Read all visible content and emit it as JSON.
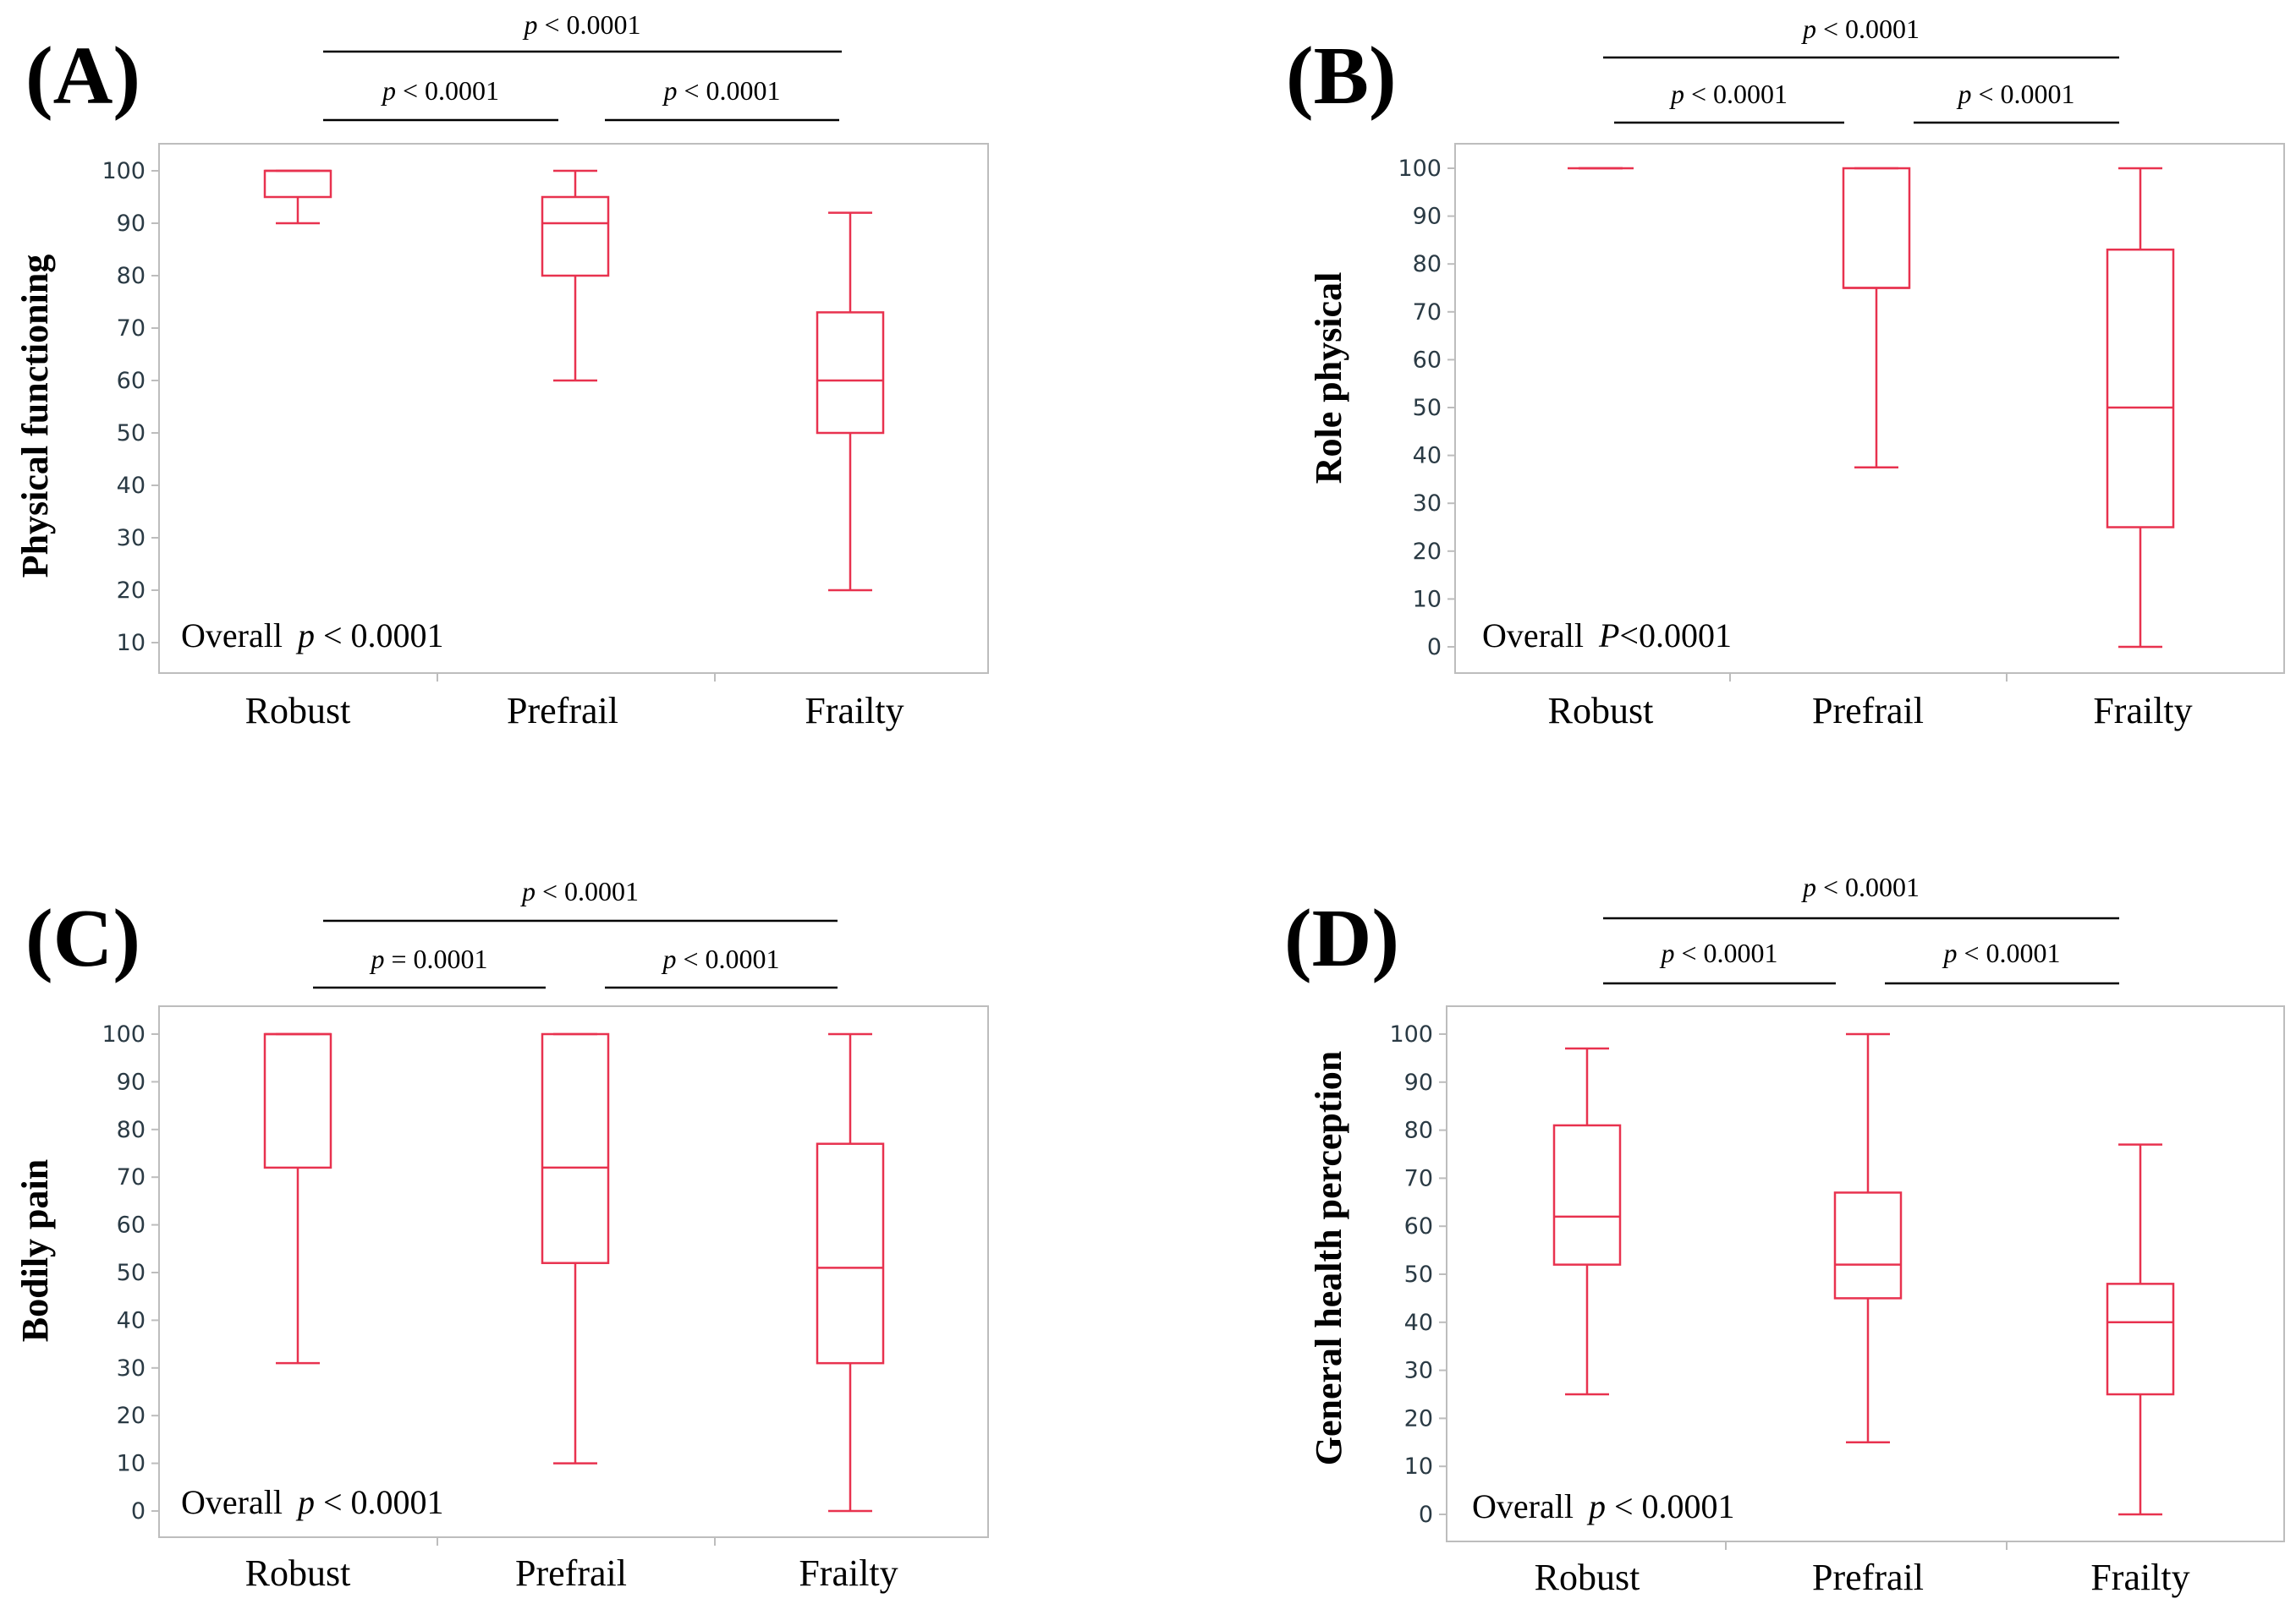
{
  "figure": {
    "categories": [
      "Robust",
      "Prefrail",
      "Frailty"
    ],
    "box_color": "#e8324f",
    "axis_color": "#bdbdbd",
    "tick_label_color": "#2a3a44",
    "line_color": "#000000"
  },
  "chart_data": [
    {
      "type": "boxplot",
      "panel": "(A)",
      "ylabel": "Physical functioning",
      "categories": [
        "Robust",
        "Prefrail",
        "Frailty"
      ],
      "ylim": [
        7,
        105
      ],
      "yticks": [
        10,
        20,
        30,
        40,
        50,
        60,
        70,
        80,
        90,
        100
      ],
      "boxes": [
        {
          "category": "Robust",
          "min": 90,
          "q1": 95,
          "median": 100,
          "q3": 100,
          "max": 100
        },
        {
          "category": "Prefrail",
          "min": 60,
          "q1": 80,
          "median": 90,
          "q3": 95,
          "max": 100
        },
        {
          "category": "Frailty",
          "min": 20,
          "q1": 50,
          "median": 60,
          "q3": 73,
          "max": 92
        }
      ],
      "overall": {
        "prefix": "Overall",
        "p_symbol": "p",
        "rest": " < 0.0001"
      },
      "comparisons": [
        {
          "pair": "Robust-Frailty",
          "p_symbol": "p",
          "text": " < 0.0001"
        },
        {
          "pair": "Robust-Prefrail",
          "p_symbol": "p",
          "text": " < 0.0001"
        },
        {
          "pair": "Prefrail-Frailty",
          "p_symbol": "p",
          "text": " < 0.0001"
        }
      ]
    },
    {
      "type": "boxplot",
      "panel": "(B)",
      "ylabel": "Role physical",
      "categories": [
        "Robust",
        "Prefrail",
        "Frailty"
      ],
      "ylim": [
        -5,
        105
      ],
      "yticks": [
        0,
        10,
        20,
        30,
        40,
        50,
        60,
        70,
        80,
        90,
        100
      ],
      "boxes": [
        {
          "category": "Robust",
          "min": 100,
          "q1": 100,
          "median": 100,
          "q3": 100,
          "max": 100
        },
        {
          "category": "Prefrail",
          "min": 37.5,
          "q1": 75,
          "median": 75,
          "q3": 100,
          "max": 100
        },
        {
          "category": "Frailty",
          "min": 0,
          "q1": 25,
          "median": 50,
          "q3": 83,
          "max": 100
        }
      ],
      "overall": {
        "prefix": "Overall",
        "p_symbol": "P",
        "rest": "<0.0001"
      },
      "comparisons": [
        {
          "pair": "Robust-Frailty",
          "p_symbol": "p",
          "text": " < 0.0001"
        },
        {
          "pair": "Robust-Prefrail",
          "p_symbol": "p",
          "text": " < 0.0001"
        },
        {
          "pair": "Prefrail-Frailty",
          "p_symbol": "p",
          "text": " < 0.0001"
        }
      ]
    },
    {
      "type": "boxplot",
      "panel": "(C)",
      "ylabel": "Bodily pain",
      "categories": [
        "Robust",
        "Prefrail",
        "Frailty"
      ],
      "ylim": [
        -5,
        105
      ],
      "yticks": [
        0,
        10,
        20,
        30,
        40,
        50,
        60,
        70,
        80,
        90,
        100
      ],
      "boxes": [
        {
          "category": "Robust",
          "min": 31,
          "q1": 72,
          "median": 100,
          "q3": 100,
          "max": 100
        },
        {
          "category": "Prefrail",
          "min": 10,
          "q1": 52,
          "median": 72,
          "q3": 100,
          "max": 100
        },
        {
          "category": "Frailty",
          "min": 0,
          "q1": 31,
          "median": 51,
          "q3": 77,
          "max": 100
        }
      ],
      "overall": {
        "prefix": "Overall",
        "p_symbol": "p",
        "rest": " < 0.0001"
      },
      "comparisons": [
        {
          "pair": "Robust-Frailty",
          "p_symbol": "p",
          "text": " < 0.0001"
        },
        {
          "pair": "Robust-Prefrail",
          "p_symbol": "p",
          "text": " = 0.0001"
        },
        {
          "pair": "Prefrail-Frailty",
          "p_symbol": "p",
          "text": " < 0.0001"
        }
      ]
    },
    {
      "type": "boxplot",
      "panel": "(D)",
      "ylabel": "General health perception",
      "categories": [
        "Robust",
        "Prefrail",
        "Frailty"
      ],
      "ylim": [
        -5,
        105
      ],
      "yticks": [
        0,
        10,
        20,
        30,
        40,
        50,
        60,
        70,
        80,
        90,
        100
      ],
      "boxes": [
        {
          "category": "Robust",
          "min": 25,
          "q1": 52,
          "median": 62,
          "q3": 81,
          "max": 97
        },
        {
          "category": "Prefrail",
          "min": 15,
          "q1": 45,
          "median": 52,
          "q3": 67,
          "max": 100
        },
        {
          "category": "Frailty",
          "min": 0,
          "q1": 25,
          "median": 40,
          "q3": 48,
          "max": 77
        }
      ],
      "overall": {
        "prefix": "Overall",
        "p_symbol": "p",
        "rest": " < 0.0001"
      },
      "comparisons": [
        {
          "pair": "Robust-Frailty",
          "p_symbol": "p",
          "text": " < 0.0001"
        },
        {
          "pair": "Robust-Prefrail",
          "p_symbol": "p",
          "text": " < 0.0001"
        },
        {
          "pair": "Prefrail-Frailty",
          "p_symbol": "p",
          "text": " < 0.0001"
        }
      ]
    }
  ]
}
